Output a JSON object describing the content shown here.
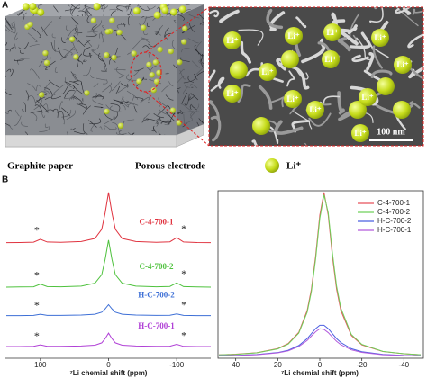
{
  "panel_a": {
    "label": "A",
    "graphite_paper": "Graphite paper",
    "porous_electrode": "Porous electrode",
    "legend_li": "Li⁺",
    "scale_bar": "100 nm",
    "sem_ions": [
      "Li⁺",
      "Li⁺",
      "Li⁺",
      "Li⁺",
      "Li⁺",
      "Li⁺",
      "Li⁺",
      "Li⁺",
      "Li⁺",
      "Li⁺",
      "Li⁺",
      "Li⁺"
    ]
  },
  "panel_b": {
    "label": "B"
  },
  "chart_data": [
    {
      "type": "line",
      "xlabel": "⁷Li chemial shift (ppm)",
      "x": [
        150,
        130,
        110,
        100,
        90,
        70,
        40,
        20,
        10,
        5,
        0,
        -5,
        -10,
        -20,
        -40,
        -70,
        -90,
        -100,
        -110,
        -130,
        -150
      ],
      "xlim": [
        150,
        -150
      ],
      "xticks": [
        100,
        0,
        -100
      ],
      "ylim": [
        0,
        100
      ],
      "legend": false,
      "annotations": [
        "*",
        "*",
        "*",
        "*",
        "*",
        "*",
        "*",
        "*"
      ],
      "series": [
        {
          "name": "C-4-700-1",
          "color": "#e03440",
          "values": [
            69,
            69.1,
            69.3,
            71,
            69.4,
            69.2,
            69.7,
            71.5,
            77,
            86.7,
            99,
            86.7,
            77,
            71.5,
            69.7,
            69.2,
            69.5,
            72,
            69.4,
            69.1,
            69
          ]
        },
        {
          "name": "C-4-700-2",
          "color": "#4fc23e",
          "values": [
            42.5,
            42.6,
            42.7,
            44.3,
            42.8,
            42.7,
            43.1,
            44.8,
            49.9,
            59,
            70.5,
            59,
            49.9,
            44.8,
            43.1,
            42.7,
            42.9,
            45,
            42.8,
            42.6,
            42.5
          ]
        },
        {
          "name": "H-C-700-2",
          "color": "#3d6fd6",
          "values": [
            25.5,
            25.5,
            25.6,
            26.3,
            25.6,
            25.6,
            25.8,
            26.3,
            27.5,
            29.5,
            32,
            29.5,
            27.5,
            26.3,
            25.8,
            25.6,
            25.7,
            26.5,
            25.6,
            25.5,
            25.5
          ]
        },
        {
          "name": "H-C-700-1",
          "color": "#b040d6",
          "values": [
            7,
            7,
            7.1,
            8,
            7.1,
            7.1,
            7.3,
            7.8,
            9.2,
            11.7,
            15,
            11.7,
            9.2,
            7.8,
            7.3,
            7.1,
            7.2,
            8.3,
            7.1,
            7,
            7
          ]
        }
      ]
    },
    {
      "type": "line",
      "xlabel": "⁷Li chemial shift (ppm)",
      "x": [
        48,
        40,
        30,
        20,
        15,
        10,
        6,
        4,
        2,
        0,
        -2,
        -4,
        -6,
        -8,
        -10,
        -15,
        -20,
        -30,
        -40,
        -48
      ],
      "xlim": [
        48,
        -48
      ],
      "xticks": [
        40,
        20,
        0,
        -20,
        -40
      ],
      "ylim": [
        0,
        100
      ],
      "legend": "upper right",
      "series": [
        {
          "name": "C-4-700-1",
          "color": "#e8505a",
          "values": [
            2,
            2.4,
            3.3,
            5.8,
            8.8,
            15.5,
            28.5,
            41.2,
            60.8,
            85.5,
            99,
            85.5,
            60.8,
            41.2,
            28.5,
            13.6,
            8,
            4,
            2.7,
            2.1
          ]
        },
        {
          "name": "C-4-700-2",
          "color": "#6fd05a",
          "values": [
            2,
            2.3,
            3.2,
            5.6,
            8.5,
            15,
            27.5,
            39.8,
            59,
            83.5,
            97.5,
            87,
            63,
            43,
            30,
            14.2,
            8.3,
            4.1,
            2.7,
            2.1
          ]
        },
        {
          "name": "H-C-700-2",
          "color": "#4b5fe0",
          "values": [
            1.5,
            1.7,
            2.2,
            3.4,
            4.8,
            7.6,
            11.7,
            14.7,
            17.7,
            19.7,
            19.7,
            17.7,
            14.7,
            11.7,
            9.4,
            5.7,
            3.9,
            2.3,
            1.7,
            1.5
          ]
        },
        {
          "name": "H-C-700-1",
          "color": "#b35bdc",
          "values": [
            1.4,
            1.6,
            2.1,
            3.2,
            4.4,
            7,
            10.6,
            13.3,
            15.8,
            17.6,
            17.2,
            15.3,
            12.6,
            10.1,
            8.1,
            5,
            3.5,
            2.1,
            1.6,
            1.4
          ]
        }
      ]
    }
  ]
}
